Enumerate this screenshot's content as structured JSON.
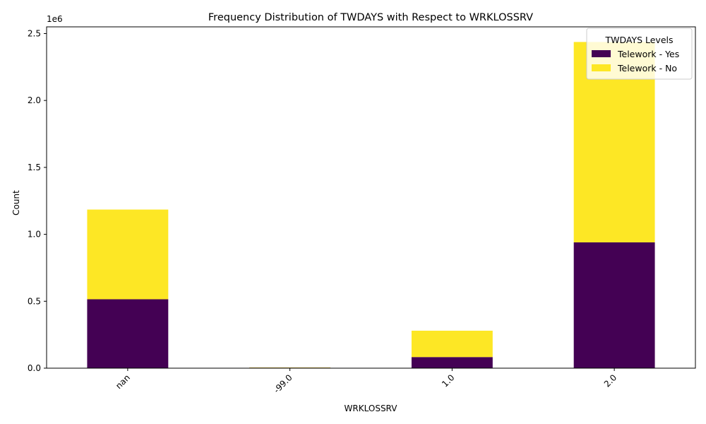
{
  "chart_data": {
    "type": "bar",
    "stacked": true,
    "title": "Frequency Distribution of TWDAYS with Respect to WRKLOSSRV",
    "xlabel": "WRKLOSSRV",
    "ylabel": "Count",
    "y_offset_label": "1e6",
    "categories": [
      "nan",
      "-99.0",
      "1.0",
      "2.0"
    ],
    "ylim": [
      0,
      2550000
    ],
    "yticks": [
      0,
      500000,
      1000000,
      1500000,
      2000000,
      2500000
    ],
    "ytick_labels": [
      "0.0",
      "0.5",
      "1.0",
      "1.5",
      "2.0",
      "2.5"
    ],
    "series": [
      {
        "name": "Telework - Yes",
        "color": "#440154",
        "values": [
          515000,
          4000,
          83000,
          940000
        ]
      },
      {
        "name": "Telework - No",
        "color": "#fde725",
        "values": [
          670000,
          2000,
          197000,
          1497000
        ]
      }
    ],
    "legend": {
      "title": "TWDAYS Levels",
      "position": "top-right"
    },
    "grid": false
  }
}
